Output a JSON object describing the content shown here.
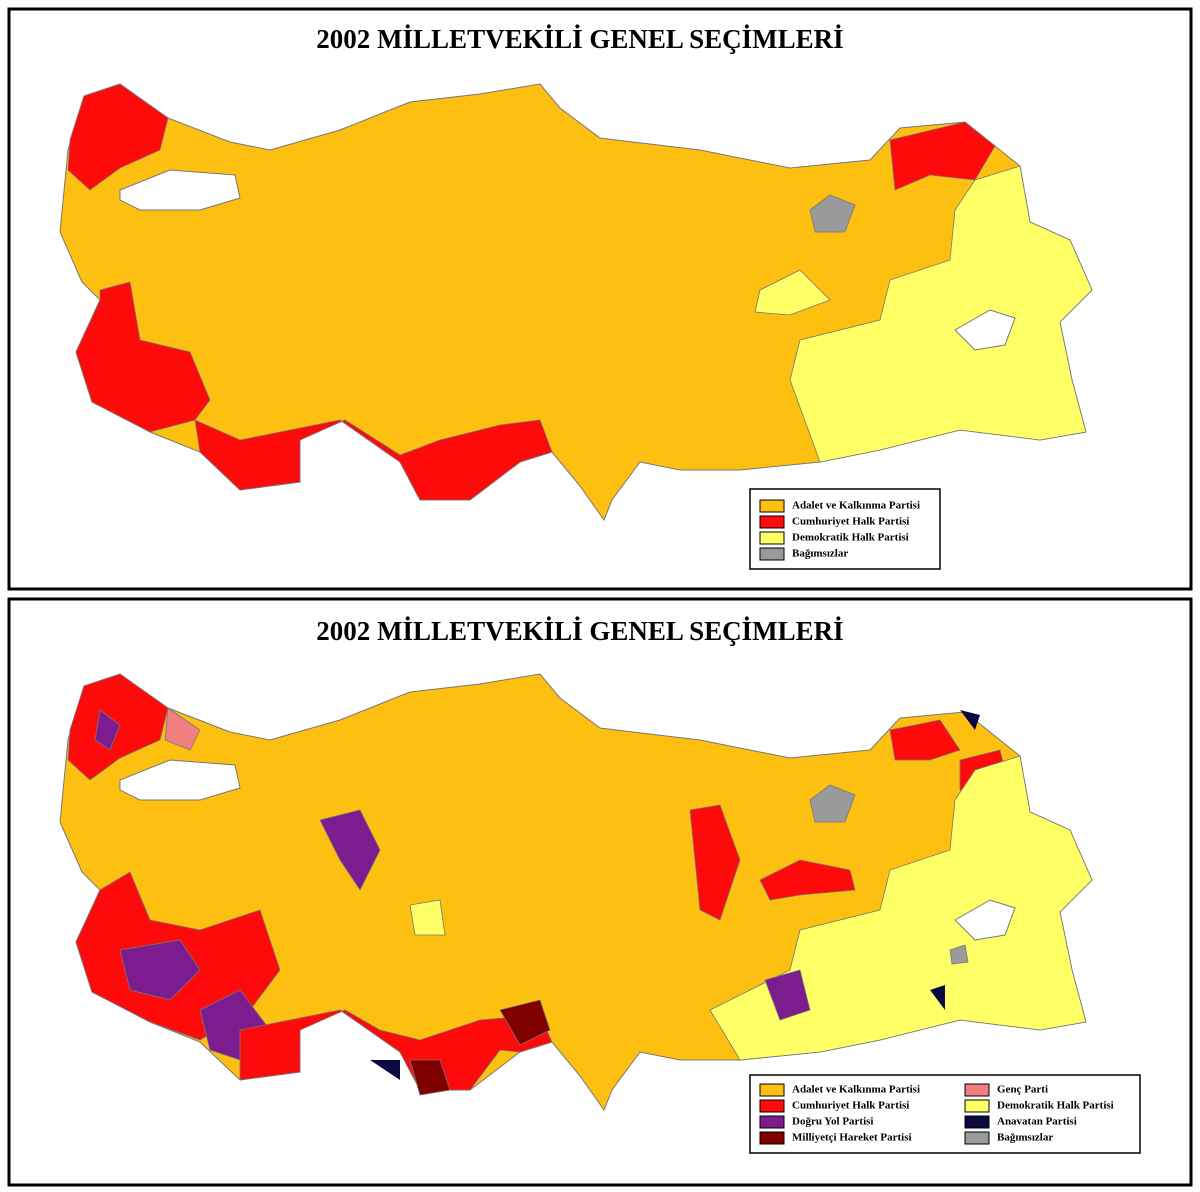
{
  "maps": [
    {
      "title": "2002 MİLLETVEKİLİ GENEL SEÇİMLERİ",
      "legend": [
        {
          "label": "Adalet ve Kalkınma Partisi",
          "color": "#fdc010"
        },
        {
          "label": "Cumhuriyet Halk Partisi",
          "color": "#ff0a0a"
        },
        {
          "label": "Demokratik Halk Partisi",
          "color": "#ffff66"
        },
        {
          "label": "Bağımsızlar",
          "color": "#9a9a9a"
        }
      ]
    },
    {
      "title": "2002 MİLLETVEKİLİ GENEL SEÇİMLERİ",
      "legend": [
        {
          "label": "Adalet ve Kalkınma Partisi",
          "color": "#fdc010"
        },
        {
          "label": "Cumhuriyet Halk Partisi",
          "color": "#ff0a0a"
        },
        {
          "label": "Doğru Yol Partisi",
          "color": "#7d1c8e"
        },
        {
          "label": "Milliyetçi Hareket Partisi",
          "color": "#800000"
        },
        {
          "label": "Genç Parti",
          "color": "#f08080"
        },
        {
          "label": "Demokratik Halk Partisi",
          "color": "#ffff66"
        },
        {
          "label": "Anavatan Partisi",
          "color": "#0a0a40"
        },
        {
          "label": "Bağımsızlar",
          "color": "#9a9a9a"
        }
      ]
    }
  ]
}
